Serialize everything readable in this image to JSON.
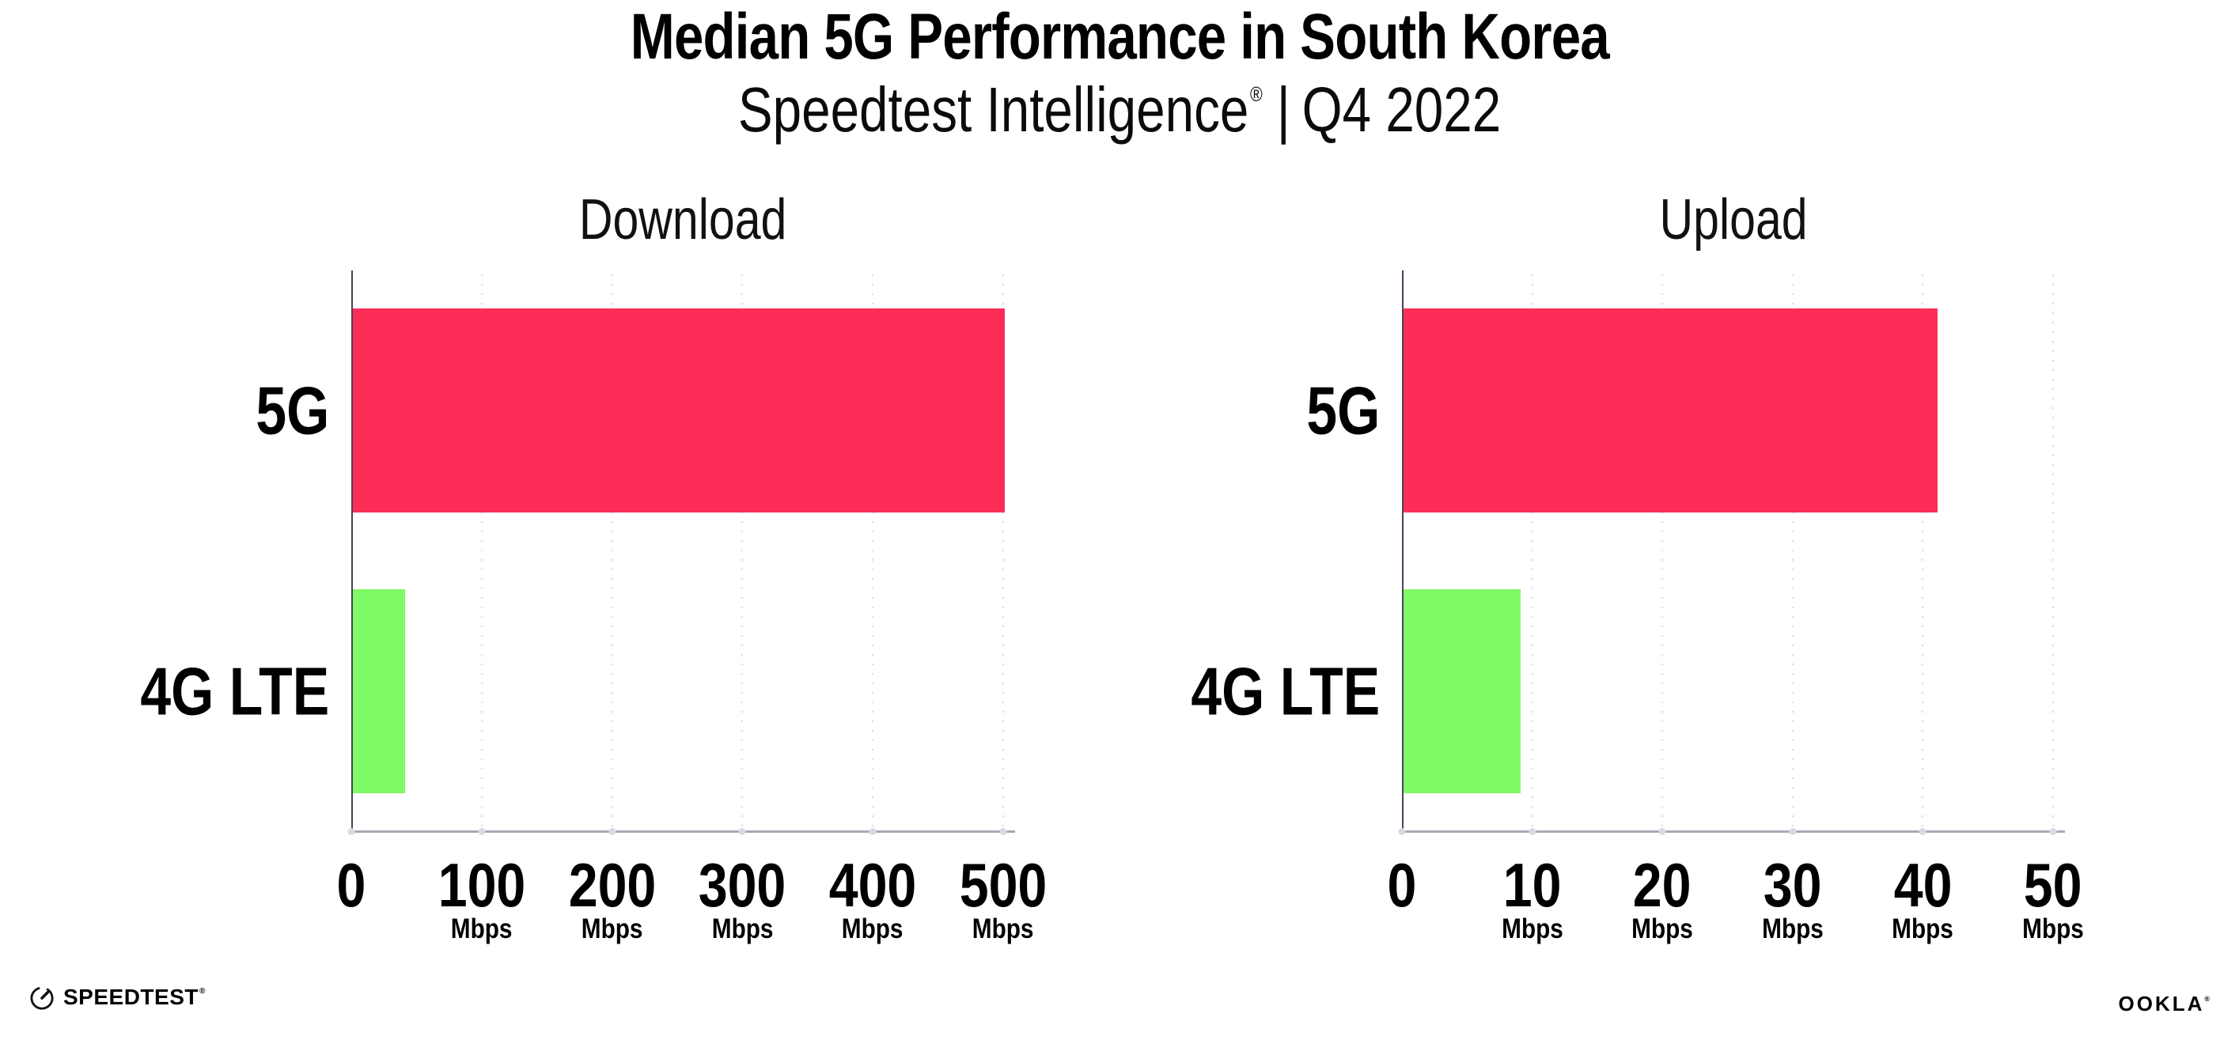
{
  "page": {
    "title": "Median 5G Performance in South Korea",
    "subtitle": {
      "brand": "Speedtest Intelligence",
      "registered": "®",
      "separator": "|",
      "period": "Q4 2022"
    },
    "footer": {
      "speedtest_wordmark": "SPEEDTEST",
      "speedtest_mark": "®",
      "ookla_wordmark": "OOKLA",
      "ookla_mark": "®"
    }
  },
  "colors": {
    "bar_5g": "#FC2E58",
    "bar_4g_lte": "#80FA66",
    "gridline": "#DFDFE9",
    "x_axis_line": "#A9A9B2",
    "y_axis_line": "#49425A",
    "tick_dot": "#D9D9E3",
    "text": "#000000"
  },
  "chart_data": [
    {
      "type": "bar",
      "orientation": "horizontal",
      "title": "Download",
      "unit": "Mbps",
      "categories": [
        "5G",
        "4G LTE"
      ],
      "values": [
        500,
        40
      ],
      "xlim": [
        0,
        500
      ],
      "xticks": [
        0,
        100,
        200,
        300,
        400,
        500
      ],
      "grid": "vertical-dotted",
      "legend": "none",
      "series_colors": [
        "#FC2E58",
        "#80FA66"
      ]
    },
    {
      "type": "bar",
      "orientation": "horizontal",
      "title": "Upload",
      "unit": "Mbps",
      "categories": [
        "5G",
        "4G LTE"
      ],
      "values": [
        41,
        9
      ],
      "xlim": [
        0,
        50
      ],
      "xticks": [
        0,
        10,
        20,
        30,
        40,
        50
      ],
      "grid": "vertical-dotted",
      "legend": "none",
      "series_colors": [
        "#FC2E58",
        "#80FA66"
      ]
    }
  ]
}
